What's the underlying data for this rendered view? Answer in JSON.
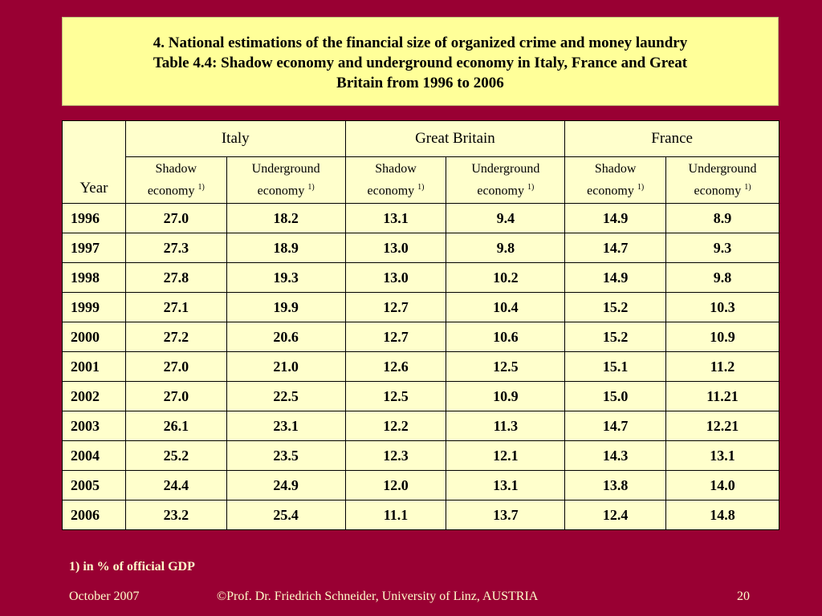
{
  "title": {
    "line1": "4. National estimations of the financial size of organized crime and money laundry",
    "line2": "Table 4.4: Shadow economy and underground economy in Italy, France and Great",
    "line3": "Britain from 1996 to 2006"
  },
  "table": {
    "year_header": "Year",
    "groups": [
      "Italy",
      "Great Britain",
      "France"
    ],
    "sub_headers": [
      {
        "line1": "Shadow",
        "line2": "economy",
        "sup": "1)"
      },
      {
        "line1": "Underground",
        "line2": "economy",
        "sup": "1)"
      },
      {
        "line1": "Shadow",
        "line2": "economy",
        "sup": "1)"
      },
      {
        "line1": "Underground",
        "line2": "economy",
        "sup": "1)"
      },
      {
        "line1": "Shadow",
        "line2": "economy",
        "sup": "1)"
      },
      {
        "line1": "Underground",
        "line2": "economy",
        "sup": "1)"
      }
    ],
    "rows": [
      [
        "1996",
        "27.0",
        "18.2",
        "13.1",
        "9.4",
        "14.9",
        "8.9"
      ],
      [
        "1997",
        "27.3",
        "18.9",
        "13.0",
        "9.8",
        "14.7",
        "9.3"
      ],
      [
        "1998",
        "27.8",
        "19.3",
        "13.0",
        "10.2",
        "14.9",
        "9.8"
      ],
      [
        "1999",
        "27.1",
        "19.9",
        "12.7",
        "10.4",
        "15.2",
        "10.3"
      ],
      [
        "2000",
        "27.2",
        "20.6",
        "12.7",
        "10.6",
        "15.2",
        "10.9"
      ],
      [
        "2001",
        "27.0",
        "21.0",
        "12.6",
        "12.5",
        "15.1",
        "11.2"
      ],
      [
        "2002",
        "27.0",
        "22.5",
        "12.5",
        "10.9",
        "15.0",
        "11.21"
      ],
      [
        "2003",
        "26.1",
        "23.1",
        "12.2",
        "11.3",
        "14.7",
        "12.21"
      ],
      [
        "2004",
        "25.2",
        "23.5",
        "12.3",
        "12.1",
        "14.3",
        "13.1"
      ],
      [
        "2005",
        "24.4",
        "24.9",
        "12.0",
        "13.1",
        "13.8",
        "14.0"
      ],
      [
        "2006",
        "23.2",
        "25.4",
        "11.1",
        "13.7",
        "12.4",
        "14.8"
      ]
    ]
  },
  "footnote": "1) in % of official GDP",
  "footer": {
    "date": "October 2007",
    "author": "©Prof. Dr. Friedrich Schneider, University of Linz, AUSTRIA",
    "page": "20"
  },
  "colors": {
    "background": "#990033",
    "title_box": "#ffff99",
    "table_fill": "#ffffcc",
    "footer_text": "#ffffcc"
  }
}
